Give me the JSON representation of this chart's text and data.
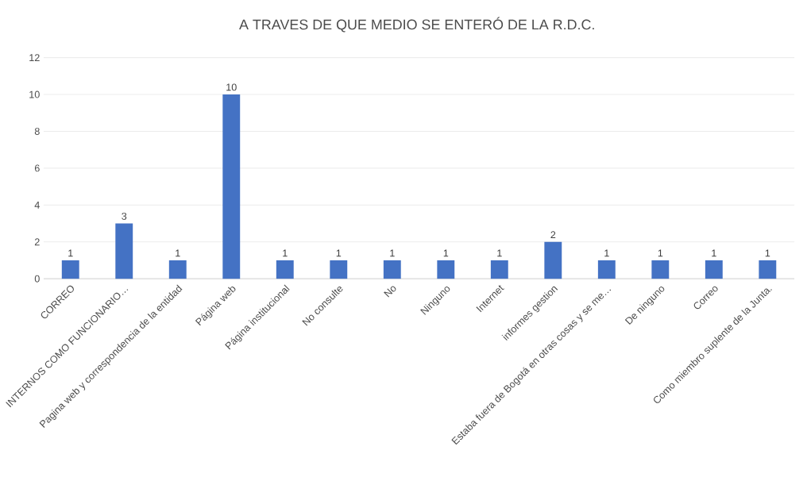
{
  "chart_data": {
    "type": "bar",
    "title": "A TRAVES DE QUE MEDIO SE ENTERÓ DE LA R.D.C.",
    "categories": [
      "CORREO",
      "INTERNOS COMO FUNCIONARIO…",
      "Pagina web y correspondencia de la entidad",
      "Página web",
      "Página institucional",
      "No consulte",
      "No",
      "Ninguno",
      "Internet",
      "informes gestion",
      "Estaba fuera de Bogotá  en otras cosas y se me…",
      "De ninguno",
      "Correo",
      "Como miembro suplente de la Junta."
    ],
    "values": [
      1,
      3,
      1,
      10,
      1,
      1,
      1,
      1,
      1,
      2,
      1,
      1,
      1,
      1
    ],
    "color": "#4472c4",
    "ylim": [
      0,
      12
    ],
    "yticks": [
      0,
      2,
      4,
      6,
      8,
      10,
      12
    ],
    "grid": "y",
    "data_labels": true
  }
}
